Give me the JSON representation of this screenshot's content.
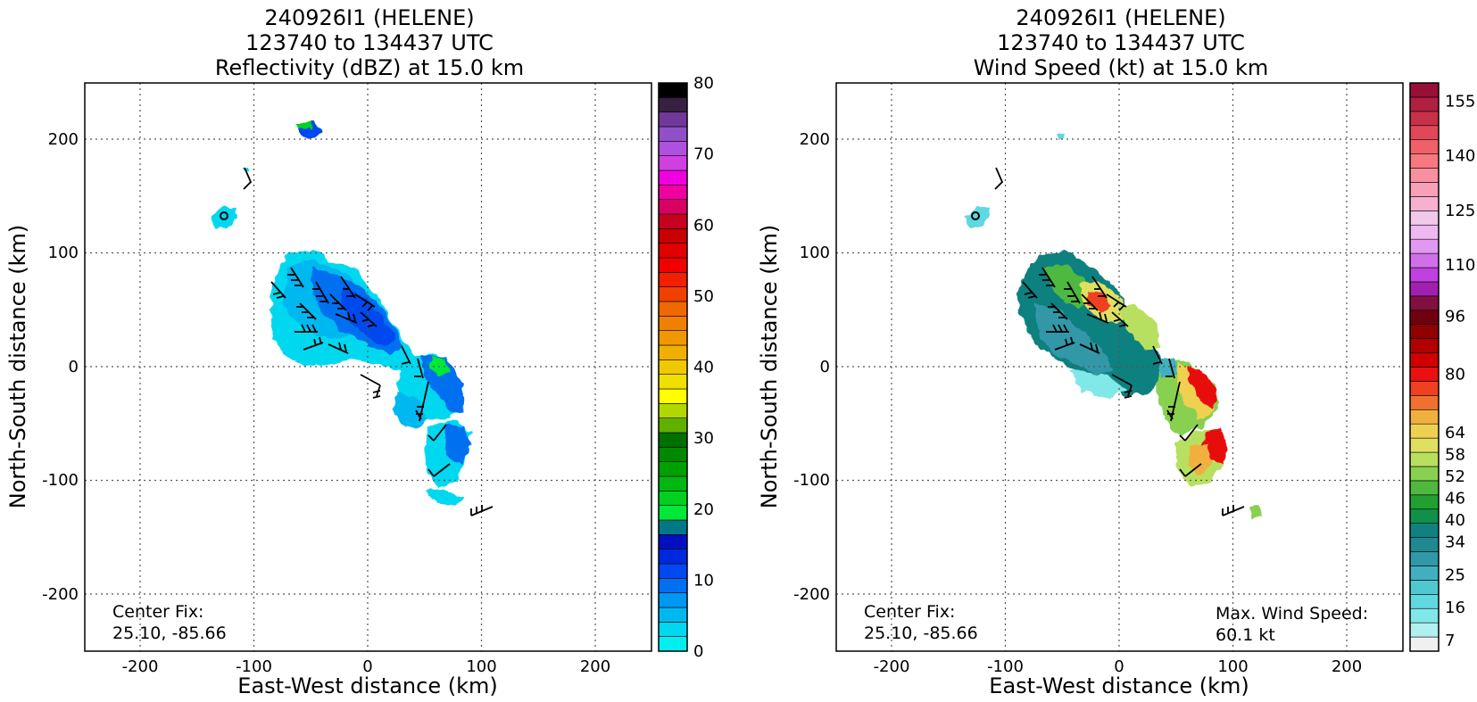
{
  "chart_data": [
    {
      "type": "heatmap",
      "title": [
        "240926I1 (HELENE)",
        "123740 to 134437 UTC",
        "Reflectivity (dBZ) at 15.0 km"
      ],
      "xlabel": "East-West distance (km)",
      "ylabel": "North-South distance (km)",
      "xlim": [
        -250,
        250
      ],
      "ylim": [
        -250,
        250
      ],
      "xticks": [
        -200,
        -100,
        0,
        100,
        200
      ],
      "yticks": [
        -200,
        -100,
        0,
        100,
        200
      ],
      "grid": true,
      "annotations": [
        {
          "text": "Center Fix:",
          "position": "bottom-left"
        },
        {
          "text": "25.10, -85.66",
          "position": "bottom-left"
        }
      ],
      "colorbar": {
        "label": "Reflectivity (dBZ)",
        "min": 0,
        "max": 80,
        "ticks": [
          0,
          10,
          20,
          30,
          40,
          50,
          60,
          70,
          80
        ],
        "colors": [
          "#00f0f0",
          "#00d8f0",
          "#00b8f0",
          "#0098f0",
          "#0070f0",
          "#0048f0",
          "#0028e0",
          "#0010c0",
          "#007888",
          "#00e838",
          "#00d020",
          "#00b810",
          "#00a000",
          "#008800",
          "#007000",
          "#60b000",
          "#b0d800",
          "#ffff00",
          "#f0e000",
          "#f0c800",
          "#f0b000",
          "#f09800",
          "#f08000",
          "#f06800",
          "#f04000",
          "#f02000",
          "#f00000",
          "#e00000",
          "#c80000",
          "#c80020",
          "#d80060",
          "#f000a0",
          "#f000e0",
          "#d040e0",
          "#b050e0",
          "#9050c8",
          "#703898",
          "#382040",
          "#000000"
        ]
      },
      "barb_color": "#000000"
    },
    {
      "type": "heatmap",
      "title": [
        "240926I1 (HELENE)",
        "123740 to 134437 UTC",
        "Wind Speed (kt) at 15.0 km"
      ],
      "xlabel": "East-West distance (km)",
      "ylabel": "North-South distance (km)",
      "xlim": [
        -250,
        250
      ],
      "ylim": [
        -250,
        250
      ],
      "xticks": [
        -200,
        -100,
        0,
        100,
        200
      ],
      "yticks": [
        -200,
        -100,
        0,
        100,
        200
      ],
      "grid": true,
      "annotations": [
        {
          "text": "Center Fix:",
          "position": "bottom-left"
        },
        {
          "text": "25.10, -85.66",
          "position": "bottom-left"
        },
        {
          "text": "Max. Wind Speed:",
          "position": "bottom-right"
        },
        {
          "text": "60.1 kt",
          "position": "bottom-right"
        }
      ],
      "colorbar": {
        "label": "Wind Speed (kt)",
        "min": 4,
        "max": 160,
        "ticks": [
          7,
          16,
          25,
          34,
          40,
          46,
          52,
          58,
          64,
          80,
          96,
          110,
          125,
          140,
          155
        ],
        "colors": [
          "#f0f0f0",
          "#b0f0f0",
          "#80e8e8",
          "#60d8e0",
          "#50c8d0",
          "#40b0c0",
          "#3098a8",
          "#208890",
          "#108080",
          "#109048",
          "#20a030",
          "#50b840",
          "#88d050",
          "#b8e060",
          "#e0e060",
          "#f0d050",
          "#f0b040",
          "#f07030",
          "#f04020",
          "#e81010",
          "#d00000",
          "#b00000",
          "#900000",
          "#700010",
          "#801040",
          "#a020b0",
          "#c040e0",
          "#d070e8",
          "#e098f0",
          "#f0b8f0",
          "#f0c8e8",
          "#f8b0d0",
          "#f8a0b8",
          "#f890a0",
          "#f87880",
          "#f06068",
          "#e04858",
          "#c83048",
          "#b02040",
          "#981038"
        ]
      },
      "barb_color": "#000000"
    }
  ]
}
